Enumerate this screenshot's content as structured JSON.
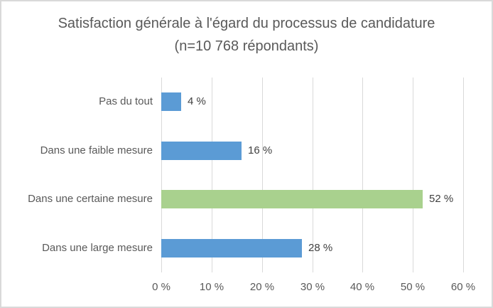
{
  "chart_data": {
    "type": "bar",
    "orientation": "horizontal",
    "title": "Satisfaction générale à l'égard du processus de candidature (n=10 768 répondants)",
    "categories": [
      "Pas du tout",
      "Dans une faible mesure",
      "Dans une certaine mesure",
      "Dans une large mesure"
    ],
    "values": [
      4,
      16,
      52,
      28
    ],
    "data_labels": [
      "4 %",
      "16 %",
      "52 %",
      "28 %"
    ],
    "bar_colors": [
      "#5B9BD5",
      "#5B9BD5",
      "#A9D18E",
      "#5B9BD5"
    ],
    "x_ticks": [
      {
        "value": 0,
        "label": "0 %"
      },
      {
        "value": 10,
        "label": "10 %"
      },
      {
        "value": 20,
        "label": "20 %"
      },
      {
        "value": 30,
        "label": "30 %"
      },
      {
        "value": 40,
        "label": "40 %"
      },
      {
        "value": 50,
        "label": "50 %"
      },
      {
        "value": 60,
        "label": "60 %"
      }
    ],
    "xlim": [
      0,
      60
    ],
    "grid": "vertical-on",
    "legend": "none",
    "colors": {
      "bar_blue": "#5B9BD5",
      "bar_green": "#A9D18E",
      "gridline": "#D9D9D9",
      "border": "#D9D9D9",
      "title_text": "#595959",
      "axis_text": "#595959",
      "data_label_text": "#404040",
      "background": "#FFFFFF"
    }
  }
}
